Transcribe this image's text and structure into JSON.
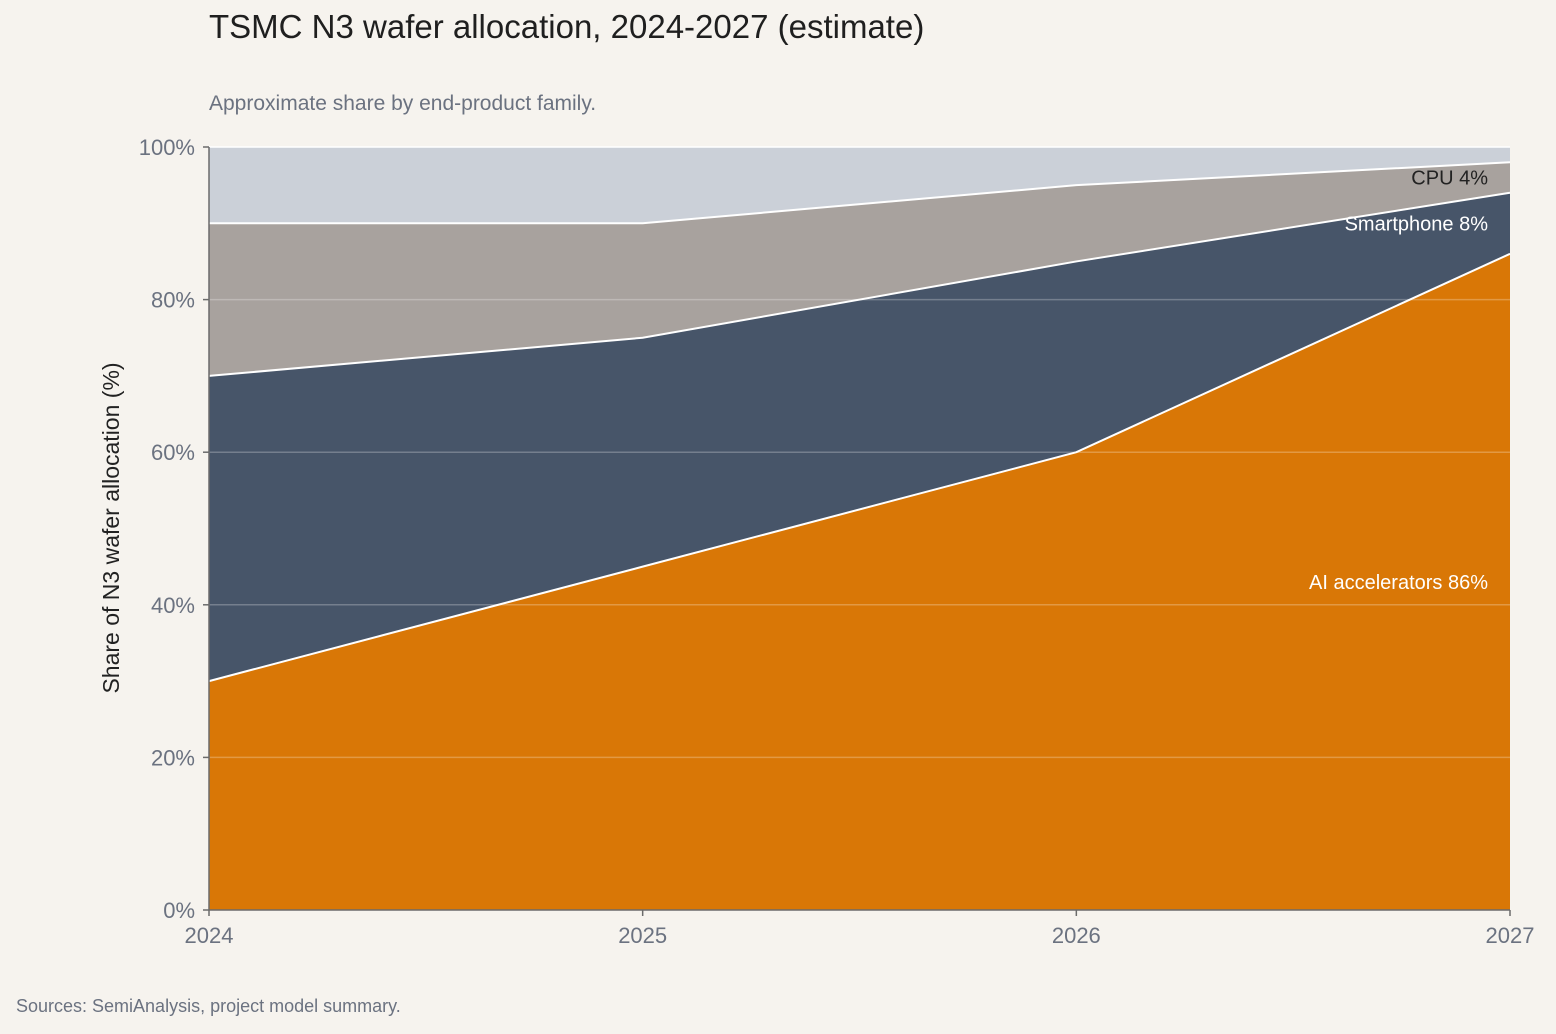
{
  "header": {
    "title": "TSMC N3 wafer allocation, 2024-2027 (estimate)",
    "subtitle": "Approximate share by end-product family."
  },
  "footer": {
    "source": "Sources: SemiAnalysis, project model summary."
  },
  "colors": {
    "background": "#f6f3ee",
    "ai_accelerators": "#d97706",
    "smartphone": "#475569",
    "cpu": "#a8a29e",
    "other": "#cbd0d8"
  },
  "chart_data": {
    "type": "area",
    "stacked": true,
    "title": "TSMC N3 wafer allocation, 2024-2027 (estimate)",
    "subtitle": "Approximate share by end-product family.",
    "xlabel": "",
    "ylabel": "Share of N3 wafer allocation (%)",
    "x": [
      2024,
      2025,
      2026,
      2027
    ],
    "xticks": [
      "2024",
      "2025",
      "2026",
      "2027"
    ],
    "yticks": [
      "0%",
      "20%",
      "40%",
      "60%",
      "80%",
      "100%"
    ],
    "ylim": [
      0,
      100
    ],
    "grid": true,
    "series": [
      {
        "key": "ai",
        "values": [
          30,
          45,
          60,
          86
        ],
        "color": "#d97706"
      },
      {
        "key": "smartphone",
        "values": [
          40,
          30,
          25,
          8
        ],
        "color": "#475569"
      },
      {
        "key": "cpu",
        "values": [
          20,
          15,
          10,
          4
        ],
        "color": "#a8a29e"
      },
      {
        "key": "other",
        "values": [
          10,
          10,
          5,
          2
        ],
        "color": "#cbd0d8"
      }
    ],
    "annotations": [
      {
        "series": "ai",
        "text": "AI accelerators 86%",
        "color": "#ffffff"
      },
      {
        "series": "smartphone",
        "text": "Smartphone 8%",
        "color": "#ffffff"
      },
      {
        "series": "cpu",
        "text": "CPU 4%",
        "color": "#222222"
      }
    ]
  }
}
